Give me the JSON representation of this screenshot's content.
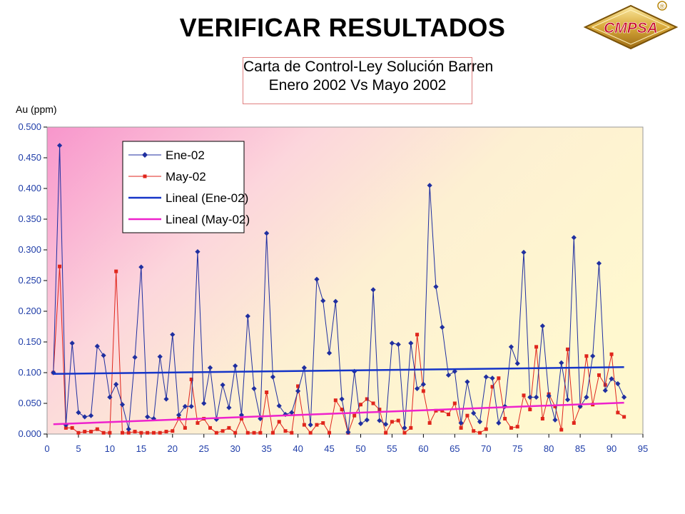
{
  "slide": {
    "title": "VERIFICAR RESULTADOS"
  },
  "logo": {
    "text": "CMPSA",
    "mark": "®"
  },
  "colors": {
    "ene": "#1f2fa0",
    "may": "#e0261c",
    "trend_ene": "#1535c8",
    "trend_may": "#ee22cc"
  },
  "chart_data": {
    "type": "line",
    "title": [
      "Carta de Control-Ley Solución Barren",
      "Enero 2002 Vs Mayo 2002"
    ],
    "ylabel": "Au (ppm)",
    "xlabel": "",
    "xlim": [
      0,
      95
    ],
    "ylim": [
      0,
      0.5
    ],
    "xticks": [
      "0",
      "5",
      "10",
      "15",
      "20",
      "25",
      "30",
      "35",
      "40",
      "45",
      "50",
      "55",
      "60",
      "65",
      "70",
      "75",
      "80",
      "85",
      "90",
      "95"
    ],
    "yticks": [
      "0.000",
      "0.050",
      "0.100",
      "0.150",
      "0.200",
      "0.250",
      "0.300",
      "0.350",
      "0.400",
      "0.450",
      "0.500"
    ],
    "grid": false,
    "legend_position": "top-left",
    "series": [
      {
        "name": "Ene-02",
        "marker": "diamond",
        "x": [
          1,
          2,
          3,
          4,
          5,
          6,
          7,
          8,
          9,
          10,
          11,
          12,
          13,
          14,
          15,
          16,
          17,
          18,
          19,
          20,
          21,
          22,
          23,
          24,
          25,
          26,
          27,
          28,
          29,
          30,
          31,
          32,
          33,
          34,
          35,
          36,
          37,
          38,
          39,
          40,
          41,
          42,
          43,
          44,
          45,
          46,
          47,
          48,
          49,
          50,
          51,
          52,
          53,
          54,
          55,
          56,
          57,
          58,
          59,
          60,
          61,
          62,
          63,
          64,
          65,
          66,
          67,
          68,
          69,
          70,
          71,
          72,
          73,
          74,
          75,
          76,
          77,
          78,
          79,
          80,
          81,
          82,
          83,
          84,
          85,
          86,
          87,
          88,
          89,
          90,
          91,
          92
        ],
        "values": [
          0.1,
          0.47,
          0.015,
          0.148,
          0.035,
          0.028,
          0.03,
          0.143,
          0.128,
          0.06,
          0.081,
          0.048,
          0.008,
          0.125,
          0.272,
          0.028,
          0.025,
          0.126,
          0.057,
          0.162,
          0.031,
          0.045,
          0.045,
          0.297,
          0.05,
          0.108,
          0.024,
          0.08,
          0.043,
          0.111,
          0.031,
          0.192,
          0.074,
          0.025,
          0.327,
          0.093,
          0.046,
          0.032,
          0.035,
          0.07,
          0.108,
          0.015,
          0.252,
          0.217,
          0.132,
          0.216,
          0.057,
          0.003,
          0.102,
          0.017,
          0.023,
          0.235,
          0.022,
          0.016,
          0.148,
          0.146,
          0.01,
          0.148,
          0.074,
          0.081,
          0.405,
          0.24,
          0.174,
          0.096,
          0.102,
          0.018,
          0.085,
          0.034,
          0.02,
          0.093,
          0.091,
          0.018,
          0.045,
          0.142,
          0.115,
          0.296,
          0.06,
          0.06,
          0.176,
          0.062,
          0.023,
          0.116,
          0.056,
          0.32,
          0.045,
          0.06,
          0.127,
          0.278,
          0.071,
          0.09,
          0.082,
          0.06
        ]
      },
      {
        "name": "May-02",
        "marker": "square",
        "x": [
          1,
          2,
          3,
          4,
          5,
          6,
          7,
          8,
          9,
          10,
          11,
          12,
          13,
          14,
          15,
          16,
          17,
          18,
          19,
          20,
          21,
          22,
          23,
          24,
          25,
          26,
          27,
          28,
          29,
          30,
          31,
          32,
          33,
          34,
          35,
          36,
          37,
          38,
          39,
          40,
          41,
          42,
          43,
          44,
          45,
          46,
          47,
          48,
          49,
          50,
          51,
          52,
          53,
          54,
          55,
          56,
          57,
          58,
          59,
          60,
          61,
          62,
          63,
          64,
          65,
          66,
          67,
          68,
          69,
          70,
          71,
          72,
          73,
          74,
          75,
          76,
          77,
          78,
          79,
          80,
          81,
          82,
          83,
          84,
          85,
          86,
          87,
          88,
          89,
          90,
          91,
          92
        ],
        "values": [
          0.1,
          0.273,
          0.01,
          0.01,
          0.002,
          0.004,
          0.004,
          0.008,
          0.002,
          0.002,
          0.265,
          0.002,
          0.002,
          0.004,
          0.002,
          0.002,
          0.002,
          0.002,
          0.004,
          0.005,
          0.025,
          0.01,
          0.089,
          0.018,
          0.025,
          0.01,
          0.002,
          0.005,
          0.01,
          0.002,
          0.025,
          0.002,
          0.002,
          0.002,
          0.068,
          0.002,
          0.02,
          0.005,
          0.002,
          0.078,
          0.015,
          0.002,
          0.015,
          0.018,
          0.002,
          0.055,
          0.04,
          0.002,
          0.03,
          0.048,
          0.057,
          0.05,
          0.04,
          0.002,
          0.02,
          0.022,
          0.002,
          0.01,
          0.162,
          0.07,
          0.018,
          0.038,
          0.038,
          0.032,
          0.05,
          0.01,
          0.03,
          0.005,
          0.002,
          0.008,
          0.077,
          0.091,
          0.025,
          0.01,
          0.012,
          0.063,
          0.04,
          0.142,
          0.025,
          0.065,
          0.045,
          0.007,
          0.138,
          0.018,
          0.045,
          0.127,
          0.048,
          0.096,
          0.08,
          0.13,
          0.035,
          0.028
        ]
      },
      {
        "name": "Lineal (Ene-02)",
        "type": "trendline",
        "x": [
          1,
          92
        ],
        "values": [
          0.098,
          0.109
        ]
      },
      {
        "name": "Lineal (May-02)",
        "type": "trendline",
        "x": [
          1,
          92
        ],
        "values": [
          0.016,
          0.051
        ]
      }
    ]
  }
}
